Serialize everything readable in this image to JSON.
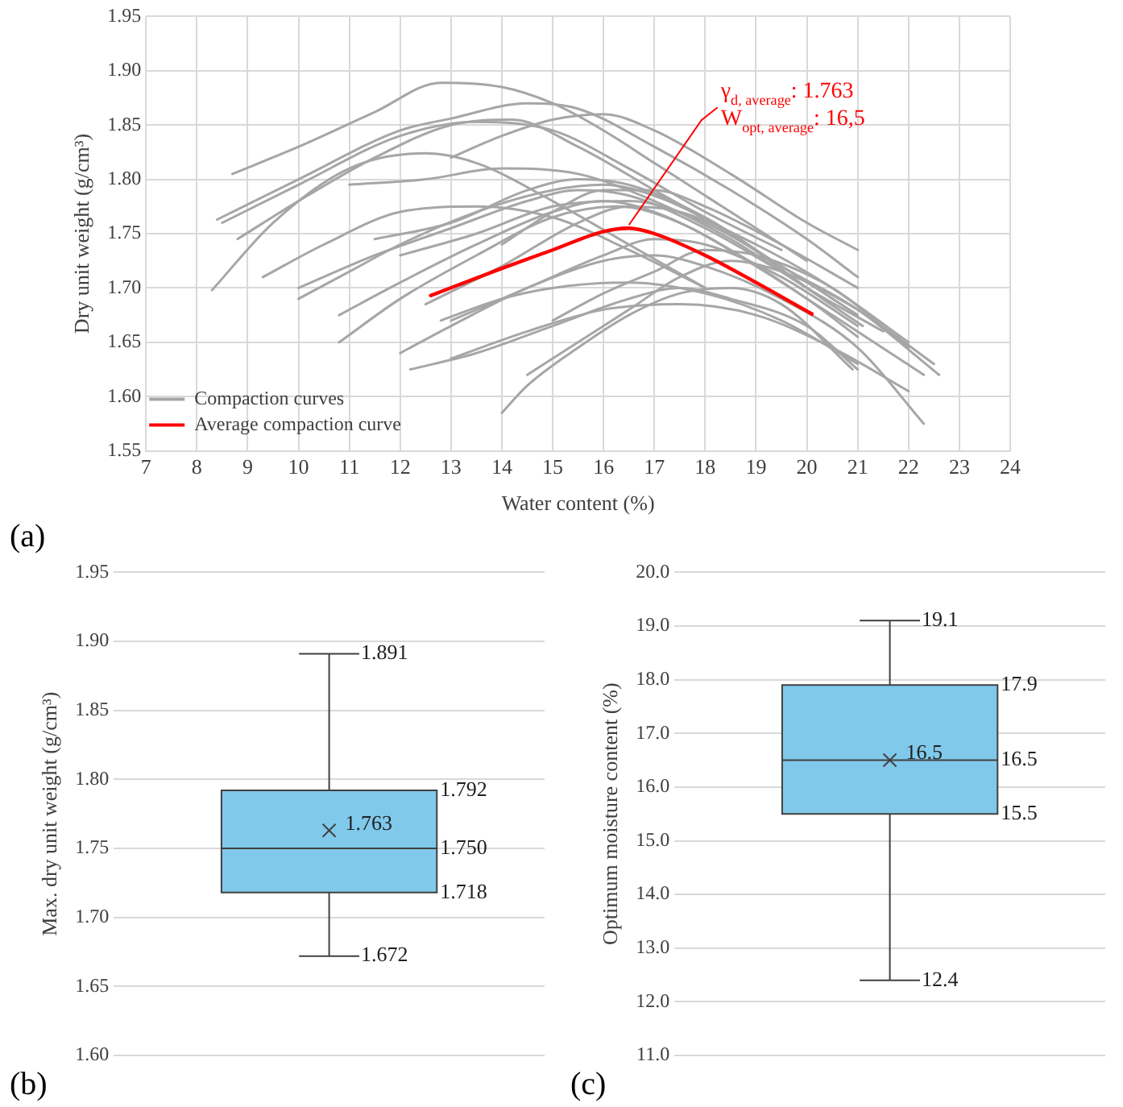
{
  "chart_data": [
    {
      "type": "line",
      "xlabel": "Water content (%)",
      "ylabel": "Dry unit weight (g/cm³)",
      "xlim": [
        7,
        24
      ],
      "xticks": [
        7,
        8,
        9,
        10,
        11,
        12,
        13,
        14,
        15,
        16,
        17,
        18,
        19,
        20,
        21,
        22,
        23,
        24
      ],
      "ylim": [
        1.55,
        1.95
      ],
      "yticks": [
        {
          "value": 1.55,
          "label": "1.55"
        },
        {
          "value": 1.6,
          "label": "1.60"
        },
        {
          "value": 1.65,
          "label": "1.65"
        },
        {
          "value": 1.7,
          "label": "1.70"
        },
        {
          "value": 1.75,
          "label": "1.75"
        },
        {
          "value": 1.8,
          "label": "1.80"
        },
        {
          "value": 1.85,
          "label": "1.85"
        },
        {
          "value": 1.9,
          "label": "1.90"
        },
        {
          "value": 1.95,
          "label": "1.95"
        }
      ],
      "grid": true,
      "legend": "bottom left",
      "annotations": [
        "(a)",
        {
          "text": "γ$_{d, average}$: 1.763",
          "x": 16.5,
          "y": 1.755
        },
        {
          "text": "W$_{opt, average}$: 16,5",
          "x": 16.5,
          "y": 1.755
        }
      ],
      "series": [
        {
          "name": "Compaction curves",
          "color": "#a6a6a6",
          "x": [
            8.7,
            10,
            11.5,
            12.8,
            14,
            15,
            16,
            17,
            18,
            19,
            20
          ],
          "values": [
            1.805,
            1.83,
            1.862,
            1.889,
            1.885,
            1.87,
            1.845,
            1.815,
            1.785,
            1.755,
            1.725
          ]
        },
        {
          "color": "#a6a6a6",
          "x": [
            8.4,
            10,
            12,
            13,
            14.5,
            15.5,
            17,
            18.5,
            20,
            21
          ],
          "values": [
            1.763,
            1.8,
            1.845,
            1.856,
            1.87,
            1.865,
            1.83,
            1.79,
            1.745,
            1.71
          ]
        },
        {
          "color": "#a6a6a6",
          "x": [
            8.5,
            10,
            12,
            13.5,
            15,
            16.5,
            18,
            19.5
          ],
          "values": [
            1.76,
            1.795,
            1.84,
            1.853,
            1.845,
            1.81,
            1.77,
            1.735
          ]
        },
        {
          "color": "#a6a6a6",
          "x": [
            8.3,
            9.5,
            11,
            12.5,
            13.5,
            15,
            16.5,
            18
          ],
          "values": [
            1.698,
            1.76,
            1.81,
            1.824,
            1.815,
            1.78,
            1.74,
            1.7
          ]
        },
        {
          "color": "#a6a6a6",
          "x": [
            8.8,
            10,
            11.5,
            13,
            14.2,
            15.5,
            17,
            18.5,
            20
          ],
          "values": [
            1.745,
            1.78,
            1.82,
            1.85,
            1.855,
            1.83,
            1.79,
            1.75,
            1.7
          ]
        },
        {
          "color": "#a6a6a6",
          "x": [
            13,
            14,
            15,
            16,
            17,
            18.5,
            20,
            21
          ],
          "values": [
            1.82,
            1.84,
            1.855,
            1.86,
            1.845,
            1.805,
            1.76,
            1.735
          ]
        },
        {
          "color": "#a6a6a6",
          "x": [
            9.3,
            10.5,
            12,
            13.5,
            15,
            16.5,
            18
          ],
          "values": [
            1.71,
            1.74,
            1.77,
            1.775,
            1.765,
            1.735,
            1.7
          ]
        },
        {
          "color": "#a6a6a6",
          "x": [
            10,
            11,
            12,
            13.5,
            15,
            16,
            17,
            18.5,
            20,
            21.1
          ],
          "values": [
            1.69,
            1.715,
            1.74,
            1.77,
            1.79,
            1.795,
            1.785,
            1.75,
            1.7,
            1.665
          ]
        },
        {
          "color": "#a6a6a6",
          "x": [
            10.8,
            12,
            13.5,
            15,
            16,
            17,
            18.5,
            20,
            21
          ],
          "values": [
            1.675,
            1.705,
            1.74,
            1.77,
            1.78,
            1.77,
            1.735,
            1.69,
            1.655
          ]
        },
        {
          "color": "#a6a6a6",
          "x": [
            10.8,
            12,
            13.5,
            15,
            16.3,
            17.5,
            19,
            20.5,
            22.3
          ],
          "values": [
            1.65,
            1.69,
            1.73,
            1.765,
            1.775,
            1.76,
            1.72,
            1.675,
            1.62
          ]
        },
        {
          "color": "#a6a6a6",
          "x": [
            11,
            12.5,
            14,
            15.5,
            17,
            18.5,
            20,
            21.5
          ],
          "values": [
            1.795,
            1.8,
            1.81,
            1.805,
            1.78,
            1.745,
            1.7,
            1.66
          ]
        },
        {
          "color": "#a6a6a6",
          "x": [
            11.5,
            13,
            14.5,
            15.5,
            16.5,
            18,
            19.5,
            21,
            22.6
          ],
          "values": [
            1.745,
            1.76,
            1.79,
            1.8,
            1.795,
            1.765,
            1.72,
            1.68,
            1.62
          ]
        },
        {
          "color": "#a6a6a6",
          "x": [
            12,
            13,
            14.5,
            16,
            17,
            18,
            19.5,
            21,
            22.3
          ],
          "values": [
            1.64,
            1.665,
            1.7,
            1.725,
            1.73,
            1.72,
            1.69,
            1.645,
            1.575
          ]
        },
        {
          "color": "#a6a6a6",
          "x": [
            12.2,
            13.5,
            15,
            16.5,
            17.5,
            18.5,
            20,
            21
          ],
          "values": [
            1.625,
            1.64,
            1.665,
            1.69,
            1.7,
            1.69,
            1.665,
            1.625
          ]
        },
        {
          "color": "#a6a6a6",
          "x": [
            14,
            14.5,
            15.5,
            16.5,
            17.5,
            18.5,
            19.5,
            20.9
          ],
          "values": [
            1.585,
            1.61,
            1.645,
            1.675,
            1.695,
            1.7,
            1.685,
            1.625
          ]
        },
        {
          "color": "#a6a6a6",
          "x": [
            13,
            14.5,
            16,
            17.5,
            19,
            20.5,
            22
          ],
          "values": [
            1.635,
            1.66,
            1.68,
            1.685,
            1.675,
            1.645,
            1.605
          ]
        },
        {
          "color": "#a6a6a6",
          "x": [
            12.5,
            14,
            15.5,
            16.5,
            17.5,
            19,
            20.5,
            22
          ],
          "values": [
            1.685,
            1.72,
            1.76,
            1.775,
            1.77,
            1.74,
            1.7,
            1.65
          ]
        },
        {
          "color": "#a6a6a6",
          "x": [
            14.5,
            15.5,
            16.5,
            17.5,
            18.5,
            19.5,
            21,
            22.5
          ],
          "values": [
            1.62,
            1.65,
            1.68,
            1.71,
            1.725,
            1.715,
            1.68,
            1.63
          ]
        },
        {
          "color": "#a6a6a6",
          "x": [
            10,
            11.5,
            13,
            14.5,
            15.5,
            16.5,
            18,
            19.5
          ],
          "values": [
            1.7,
            1.73,
            1.755,
            1.78,
            1.79,
            1.785,
            1.755,
            1.715
          ]
        },
        {
          "color": "#a6a6a6",
          "x": [
            15,
            16,
            17,
            18,
            19,
            20.5,
            22
          ],
          "values": [
            1.67,
            1.695,
            1.715,
            1.735,
            1.73,
            1.7,
            1.645
          ]
        },
        {
          "color": "#a6a6a6",
          "x": [
            12,
            13.5,
            15,
            16.5,
            18,
            19.5,
            21
          ],
          "values": [
            1.73,
            1.75,
            1.775,
            1.78,
            1.76,
            1.72,
            1.675
          ]
        },
        {
          "color": "#a6a6a6",
          "x": [
            13,
            14.5,
            16,
            17,
            18,
            19.5,
            21
          ],
          "values": [
            1.67,
            1.7,
            1.73,
            1.745,
            1.74,
            1.71,
            1.665
          ]
        },
        {
          "color": "#a6a6a6",
          "x": [
            14,
            15,
            16,
            17,
            18,
            19.5,
            21
          ],
          "values": [
            1.74,
            1.77,
            1.79,
            1.79,
            1.775,
            1.74,
            1.7
          ]
        },
        {
          "color": "#a6a6a6",
          "x": [
            12.8,
            14,
            15,
            16.5,
            18,
            19.5,
            21
          ],
          "values": [
            1.67,
            1.69,
            1.7,
            1.705,
            1.695,
            1.67,
            1.63
          ]
        },
        {
          "name": "Average compaction curve",
          "color": "#ff0000",
          "x": [
            12.6,
            14,
            15,
            16,
            16.5,
            17,
            18,
            19,
            20.1
          ],
          "values": [
            1.693,
            1.718,
            1.735,
            1.752,
            1.755,
            1.75,
            1.73,
            1.705,
            1.676
          ]
        }
      ]
    },
    {
      "type": "box",
      "categories": [
        null
      ],
      "ylabel": "Max. dry unit weight (g/cm³)",
      "ylim": [
        1.6,
        1.95
      ],
      "yticks": [
        {
          "value": 1.6,
          "label": "1.60"
        },
        {
          "value": 1.65,
          "label": "1.65"
        },
        {
          "value": 1.7,
          "label": "1.70"
        },
        {
          "value": 1.75,
          "label": "1.75"
        },
        {
          "value": 1.8,
          "label": "1.80"
        },
        {
          "value": 1.85,
          "label": "1.85"
        },
        {
          "value": 1.9,
          "label": "1.90"
        },
        {
          "value": 1.95,
          "label": "1.95"
        }
      ],
      "grid": "y",
      "color": "#80c9ea",
      "annotations": [
        "(b)",
        "1.891",
        "1.792",
        "1.763",
        "1.750",
        "1.718",
        "1.672"
      ],
      "boxes": [
        {
          "low": 1.672,
          "q1": 1.718,
          "median": 1.75,
          "q3": 1.792,
          "high": 1.891,
          "mean": 1.763
        }
      ]
    },
    {
      "type": "box",
      "categories": [
        null
      ],
      "ylabel": "Optimum moisture content (%)",
      "ylim": [
        11,
        20
      ],
      "yticks": [
        {
          "value": 11,
          "label": "11.0"
        },
        {
          "value": 12,
          "label": "12.0"
        },
        {
          "value": 13,
          "label": "13.0"
        },
        {
          "value": 14,
          "label": "14.0"
        },
        {
          "value": 15,
          "label": "15.0"
        },
        {
          "value": 16,
          "label": "16.0"
        },
        {
          "value": 17,
          "label": "17.0"
        },
        {
          "value": 18,
          "label": "18.0"
        },
        {
          "value": 19,
          "label": "19.0"
        },
        {
          "value": 20,
          "label": "20.0"
        }
      ],
      "grid": "y",
      "color": "#80c9ea",
      "annotations": [
        "(c)",
        "19.1",
        "17.9",
        "16.5",
        "16.5",
        "15.5",
        "12.4"
      ],
      "boxes": [
        {
          "low": 12.4,
          "q1": 15.5,
          "median": 16.5,
          "q3": 17.9,
          "high": 19.1,
          "mean": 16.5
        }
      ]
    }
  ]
}
